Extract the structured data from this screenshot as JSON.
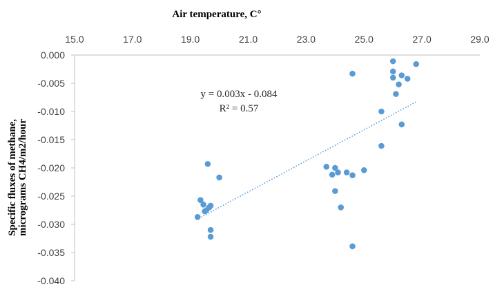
{
  "chart_data": {
    "type": "scatter",
    "title": "",
    "xlabel": "Air temperature, C°",
    "ylabel": [
      "Specific fluxes of methane,",
      "micrograms CH4/m2/hour"
    ],
    "xlim": [
      15.0,
      29.0
    ],
    "ylim": [
      -0.04,
      0.0
    ],
    "x_axis_position": "top",
    "x_ticks": [
      15.0,
      17.0,
      19.0,
      21.0,
      23.0,
      25.0,
      27.0,
      29.0
    ],
    "x_tick_labels": [
      "15.0",
      "17.0",
      "19.0",
      "21.0",
      "23.0",
      "25.0",
      "27.0",
      "29.0"
    ],
    "y_ticks": [
      0.0,
      -0.005,
      -0.01,
      -0.015,
      -0.02,
      -0.025,
      -0.03,
      -0.035,
      -0.04
    ],
    "y_tick_labels": [
      "0.000",
      "-0.005",
      "-0.010",
      "-0.015",
      "-0.020",
      "-0.025",
      "-0.030",
      "-0.035",
      "-0.040"
    ],
    "grid": false,
    "legend": "none",
    "marker_color": "#5B9BD5",
    "trendline_color": "#5B9BD5",
    "trendline": {
      "style": "dotted",
      "from": [
        19.2,
        -0.0292
      ],
      "to": [
        26.8,
        -0.0083
      ],
      "equation_text": "y = 0.003x - 0.084",
      "r2_text": "R² = 0.57"
    },
    "points": [
      {
        "x": 19.25,
        "y": -0.0287
      },
      {
        "x": 19.35,
        "y": -0.0257
      },
      {
        "x": 19.45,
        "y": -0.0265
      },
      {
        "x": 19.5,
        "y": -0.0277
      },
      {
        "x": 19.55,
        "y": -0.0275
      },
      {
        "x": 19.6,
        "y": -0.0193
      },
      {
        "x": 19.65,
        "y": -0.027
      },
      {
        "x": 19.7,
        "y": -0.0267
      },
      {
        "x": 19.7,
        "y": -0.031
      },
      {
        "x": 19.7,
        "y": -0.0322
      },
      {
        "x": 20.0,
        "y": -0.0217
      },
      {
        "x": 23.7,
        "y": -0.0198
      },
      {
        "x": 23.9,
        "y": -0.0212
      },
      {
        "x": 24.0,
        "y": -0.02
      },
      {
        "x": 24.0,
        "y": -0.0241
      },
      {
        "x": 24.1,
        "y": -0.0208
      },
      {
        "x": 24.2,
        "y": -0.027
      },
      {
        "x": 24.4,
        "y": -0.0208
      },
      {
        "x": 24.6,
        "y": -0.0213
      },
      {
        "x": 24.6,
        "y": -0.0339
      },
      {
        "x": 24.6,
        "y": -0.0033
      },
      {
        "x": 25.0,
        "y": -0.0204
      },
      {
        "x": 25.6,
        "y": -0.01
      },
      {
        "x": 25.6,
        "y": -0.0161
      },
      {
        "x": 26.0,
        "y": -0.0011
      },
      {
        "x": 26.0,
        "y": -0.0029
      },
      {
        "x": 26.0,
        "y": -0.004
      },
      {
        "x": 26.1,
        "y": -0.0069
      },
      {
        "x": 26.2,
        "y": -0.0052
      },
      {
        "x": 26.3,
        "y": -0.0036
      },
      {
        "x": 26.3,
        "y": -0.0123
      },
      {
        "x": 26.5,
        "y": -0.0042
      },
      {
        "x": 26.8,
        "y": -0.0016
      }
    ]
  }
}
